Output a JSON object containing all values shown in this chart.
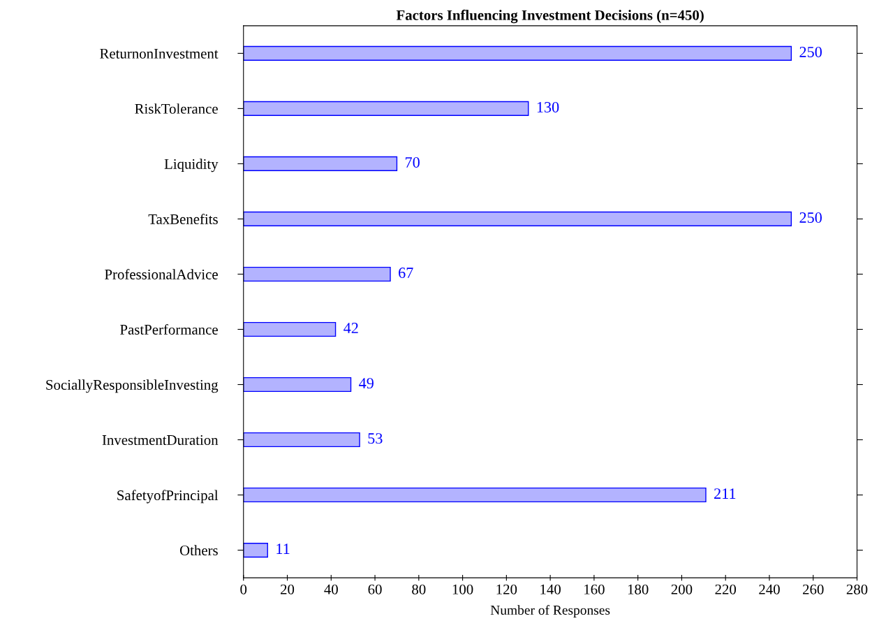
{
  "chart_data": {
    "type": "bar",
    "orientation": "horizontal",
    "title": "Factors Influencing Investment Decisions (n=450)",
    "xlabel": "Number of Responses",
    "categories": [
      "ReturnonInvestment",
      "RiskTolerance",
      "Liquidity",
      "TaxBenefits",
      "ProfessionalAdvice",
      "PastPerformance",
      "SociallyResponsibleInvesting",
      "InvestmentDuration",
      "SafetyofPrincipal",
      "Others"
    ],
    "values": [
      250,
      130,
      70,
      250,
      67,
      42,
      49,
      53,
      211,
      11
    ],
    "color": "#b3b3ff",
    "data_labels": true,
    "grid": false,
    "legend": false,
    "xlim": [
      0,
      280
    ],
    "xticks": [
      0,
      20,
      40,
      60,
      80,
      100,
      120,
      140,
      160,
      180,
      200,
      220,
      240,
      260,
      280
    ]
  }
}
